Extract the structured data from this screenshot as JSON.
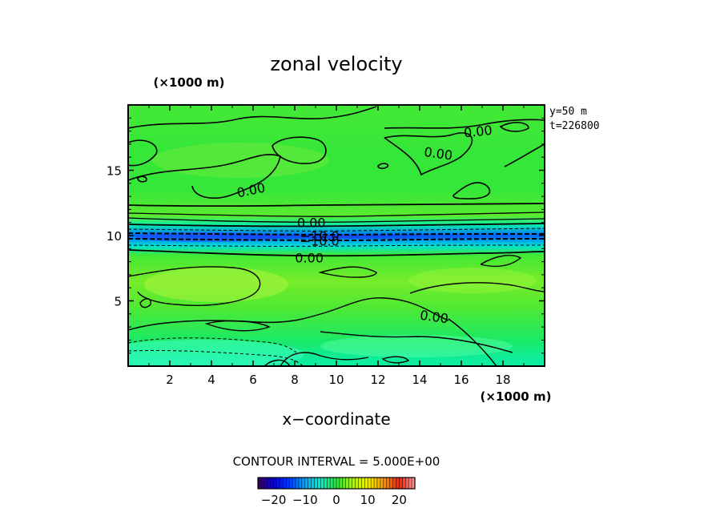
{
  "chart_data": {
    "type": "heatmap",
    "title": "zonal velocity",
    "xlabel": "x−coordinate",
    "ylabel": "",
    "x_unit_label": "(×1000 m)",
    "y_unit_label": "(×1000 m)",
    "xlim": [
      0,
      20
    ],
    "ylim": [
      0,
      20
    ],
    "x_ticks": [
      "2",
      "4",
      "6",
      "8",
      "10",
      "12",
      "14",
      "16",
      "18"
    ],
    "y_ticks": [
      "5",
      "10",
      "15"
    ],
    "info": [
      "y=50  m",
      "t=226800"
    ],
    "contour_interval_text": "CONTOUR INTERVAL = 5.000E+00",
    "colorbar": {
      "min": -25,
      "max": 25,
      "tick_labels": [
        "−20",
        "−10",
        "0",
        "10",
        "20"
      ],
      "tick_values": [
        -20,
        -10,
        0,
        10,
        20
      ]
    },
    "contour_labels": [
      {
        "text": "0.00",
        "x": 16.8,
        "y": 18.0
      },
      {
        "text": "0.00",
        "x": 14.9,
        "y": 16.3
      },
      {
        "text": "0.00",
        "x": 5.9,
        "y": 13.5
      },
      {
        "text": "0.00",
        "x": 8.8,
        "y": 11.0
      },
      {
        "text": "−10.0",
        "x": 9.2,
        "y": 10.0
      },
      {
        "text": "−10.0",
        "x": 9.2,
        "y": 9.6
      },
      {
        "text": "0.00",
        "x": 8.7,
        "y": 8.3
      },
      {
        "text": "0.00",
        "x": 14.7,
        "y": 3.8
      }
    ],
    "zonal_velocity_profile": [
      {
        "y": 0.5,
        "u": -3.5
      },
      {
        "y": 2.0,
        "u": -1.5
      },
      {
        "y": 4.5,
        "u": 1.5
      },
      {
        "y": 6.5,
        "u": 3.0
      },
      {
        "y": 8.5,
        "u": 1.0
      },
      {
        "y": 9.2,
        "u": -6.0
      },
      {
        "y": 10.0,
        "u": -13.0
      },
      {
        "y": 10.8,
        "u": -4.0
      },
      {
        "y": 11.5,
        "u": 2.0
      },
      {
        "y": 13.5,
        "u": 0.5
      },
      {
        "y": 16.5,
        "u": 0.5
      },
      {
        "y": 19.0,
        "u": 1.0
      }
    ]
  }
}
